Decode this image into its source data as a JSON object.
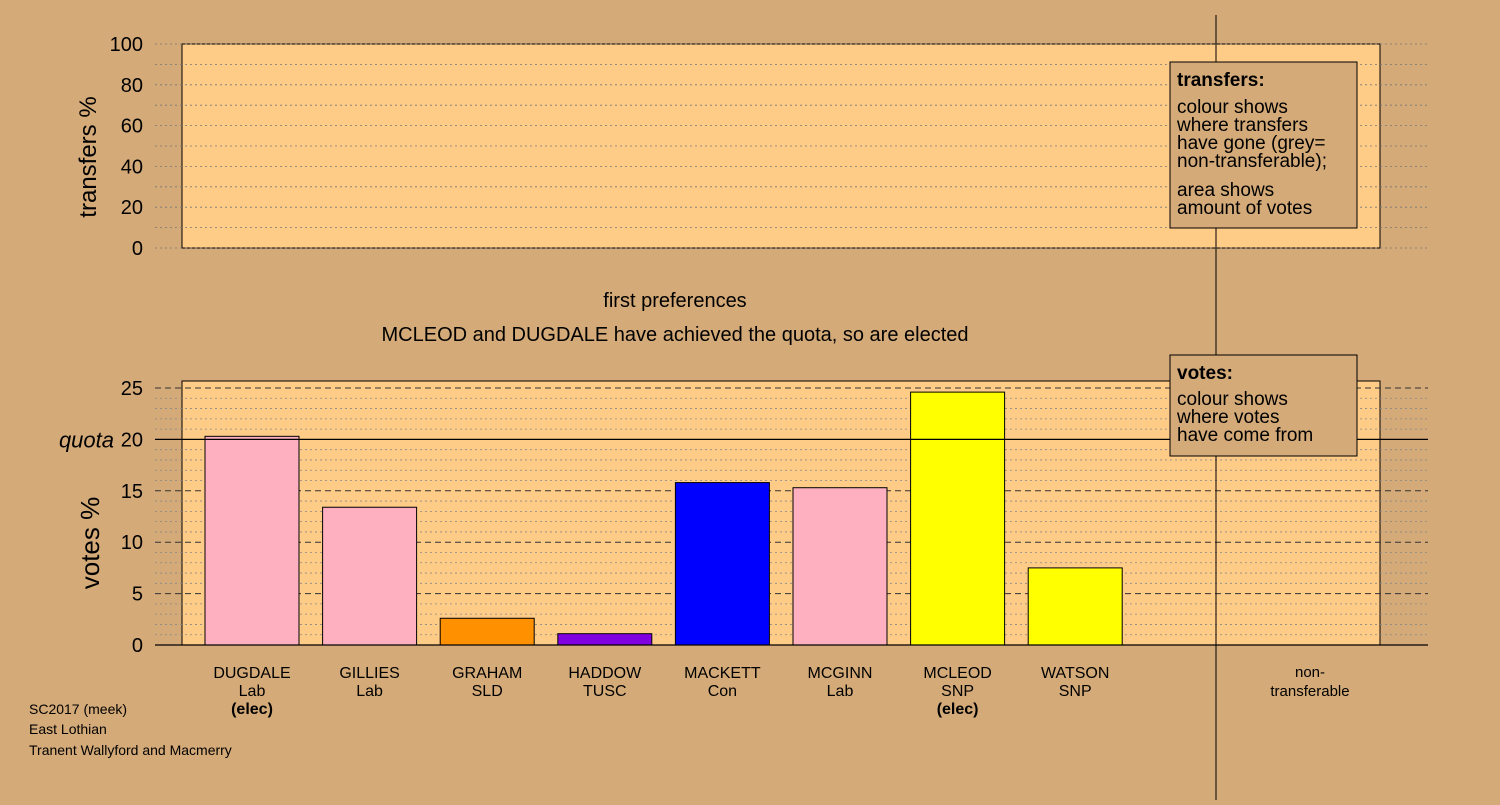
{
  "chart_data": {
    "type": "bar",
    "transfers_panel": {
      "ylabel": "transfers %",
      "ylim": [
        0,
        100
      ],
      "ticks": [
        0,
        20,
        40,
        60,
        80,
        100
      ],
      "legend_title": "transfers:",
      "legend_lines_1": [
        "colour shows",
        "where transfers",
        "have gone (grey=",
        "non-transferable);"
      ],
      "legend_lines_2": [
        "area shows",
        "amount of votes"
      ]
    },
    "stage_label": "first preferences",
    "message": "MCLEOD and DUGDALE have achieved the quota, so are elected",
    "votes_panel": {
      "ylabel": "votes %",
      "ylim": [
        0,
        25.8
      ],
      "ticks": [
        0,
        5,
        10,
        15,
        20,
        25
      ],
      "quota_label": "quota",
      "quota": 20,
      "legend_title": "votes:",
      "legend_lines": [
        "colour shows",
        "where votes",
        "have come from"
      ]
    },
    "categories": [
      {
        "name": "DUGDALE",
        "party": "Lab",
        "status": "(elec)",
        "value": 20.3,
        "color": "#ffb0c0"
      },
      {
        "name": "GILLIES",
        "party": "Lab",
        "status": "",
        "value": 13.4,
        "color": "#ffb0c0"
      },
      {
        "name": "GRAHAM",
        "party": "SLD",
        "status": "",
        "value": 2.6,
        "color": "#ff9000"
      },
      {
        "name": "HADDOW",
        "party": "TUSC",
        "status": "",
        "value": 1.1,
        "color": "#8000e0"
      },
      {
        "name": "MACKETT",
        "party": "Con",
        "status": "",
        "value": 15.8,
        "color": "#0000ff"
      },
      {
        "name": "MCGINN",
        "party": "Lab",
        "status": "",
        "value": 15.3,
        "color": "#ffb0c0"
      },
      {
        "name": "MCLEOD",
        "party": "SNP",
        "status": "(elec)",
        "value": 24.6,
        "color": "#ffff00"
      },
      {
        "name": "WATSON",
        "party": "SNP",
        "status": "",
        "value": 7.5,
        "color": "#ffff00"
      }
    ],
    "nontransferable_label": [
      "non-",
      "transferable"
    ]
  },
  "footer": {
    "line1": "SC2017 (meek)",
    "line2": "East Lothian",
    "line3": "Tranent Wallyford and Macmerry"
  }
}
